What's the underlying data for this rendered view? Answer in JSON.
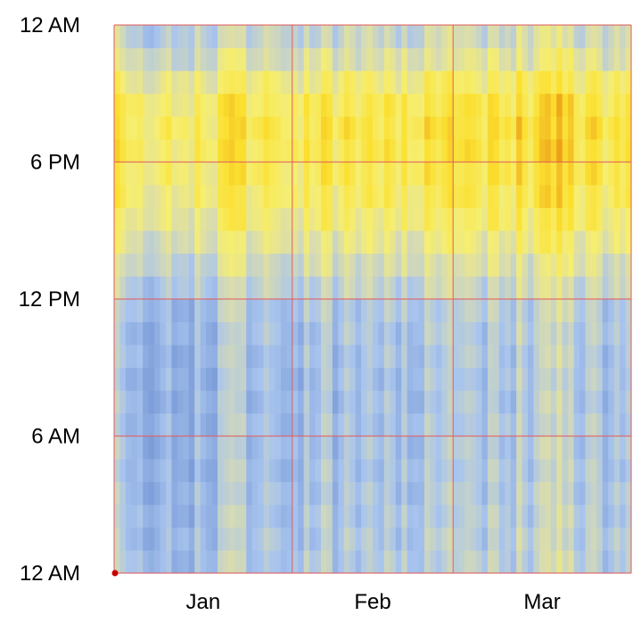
{
  "chart_data": {
    "type": "heatmap",
    "title": "",
    "xlabel": "",
    "ylabel": "",
    "x_start": "2017-01-01",
    "x_end": "2017-03-31",
    "x_ticks": [
      {
        "label": "Jan",
        "month": 1
      },
      {
        "label": "Feb",
        "month": 2
      },
      {
        "label": "Mar",
        "month": 3
      }
    ],
    "month_boundaries": [
      "2017-02-01",
      "2017-03-01"
    ],
    "y_ticks": [
      {
        "label": "12 AM",
        "hour": 24
      },
      {
        "label": "6 PM",
        "hour": 18
      },
      {
        "label": "12 PM",
        "hour": 12
      },
      {
        "label": "6 AM",
        "hour": 6
      },
      {
        "label": "12 AM",
        "hour": 0
      }
    ],
    "y_hour_range": [
      0,
      24
    ],
    "grid": true,
    "colors": {
      "grid": "#e06060",
      "low": "#5a7ec8",
      "mid_low": "#a8c4ee",
      "mid": "#d8dcb0",
      "mid_high": "#f6ee70",
      "high": "#fbe030",
      "peak": "#e88a10"
    },
    "value_range": [
      0,
      1
    ],
    "hour_profile": [
      0.34,
      0.33,
      0.32,
      0.31,
      0.3,
      0.3,
      0.3,
      0.29,
      0.29,
      0.3,
      0.31,
      0.33,
      0.4,
      0.47,
      0.55,
      0.62,
      0.67,
      0.7,
      0.72,
      0.73,
      0.7,
      0.62,
      0.5,
      0.42
    ],
    "day_level": [
      0.1,
      0.02,
      -0.05,
      -0.06,
      -0.03,
      -0.12,
      -0.14,
      -0.1,
      -0.05,
      0.0,
      -0.12,
      -0.09,
      -0.08,
      -0.14,
      0.03,
      -0.06,
      -0.1,
      -0.12,
      0.06,
      0.09,
      0.12,
      0.09,
      0.1,
      -0.08,
      -0.04,
      -0.02,
      0.05,
      0.0,
      -0.02,
      -0.07,
      -0.06,
      -0.03,
      -0.1,
      0.06,
      -0.05,
      -0.02,
      0.1,
      0.07,
      -0.1,
      -0.02,
      0.07,
      0.02,
      -0.06,
      0.02,
      0.06,
      -0.01,
      -0.05,
      0.07,
      0.02,
      -0.07,
      0.06,
      -0.06,
      -0.04,
      -0.05,
      0.1,
      0.05,
      0.0,
      0.06,
      0.11,
      0.03,
      0.04,
      0.08,
      0.06,
      0.02,
      -0.06,
      0.1,
      0.09,
      -0.02,
      0.03,
      -0.05,
      0.15,
      0.04,
      -0.04,
      0.08,
      0.14,
      0.16,
      0.09,
      0.2,
      0.08,
      0.14,
      -0.01,
      -0.04,
      0.08,
      0.11,
      0.05,
      -0.08,
      -0.02,
      0.06,
      -0.02,
      0.06
    ]
  }
}
